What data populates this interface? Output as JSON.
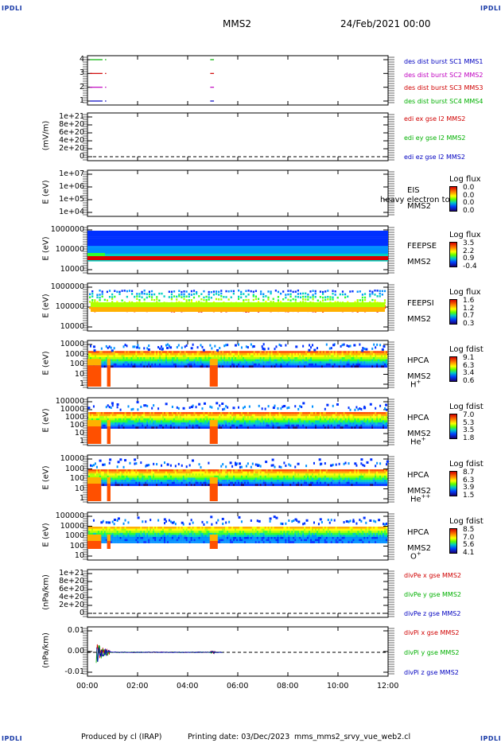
{
  "corners": {
    "tl": "IPDLI",
    "tr": "IPDLI",
    "bl": "IPDLI",
    "br": "IPDLI"
  },
  "header": {
    "spacecraft": "MMS2",
    "date": "24/Feb/2021 00:00"
  },
  "footer": {
    "produced": "Produced by cl (IRAP)",
    "printing": "Printing date: 03/Dec/2023",
    "file": "mms_mms2_srvy_vue_web2.cl"
  },
  "chart_data": [
    {
      "type": "line",
      "panel": "des-dist-burst",
      "ylabel": "",
      "yticks": [
        "4",
        "3",
        "2",
        "1"
      ],
      "ylim": [
        0.5,
        4.5
      ],
      "legend": [
        {
          "name": "des dist burst SC1 MMS1",
          "color": "#0000c0"
        },
        {
          "name": "des dist burst SC2 MMS2",
          "color": "#c000c0"
        },
        {
          "name": "des dist burst SC3 MMS3",
          "color": "#d00000"
        },
        {
          "name": "des dist burst SC4 MMS4",
          "color": "#00b000"
        }
      ],
      "segments": [
        {
          "sc": 4,
          "t": [
            [
              0.1,
              0.6
            ],
            [
              0.7,
              0.75
            ],
            [
              4.9,
              5.05
            ]
          ]
        },
        {
          "sc": 3,
          "t": [
            [
              0.1,
              0.6
            ],
            [
              0.7,
              0.75
            ],
            [
              4.9,
              5.05
            ]
          ]
        },
        {
          "sc": 2,
          "t": [
            [
              0.1,
              0.6
            ],
            [
              0.7,
              0.75
            ],
            [
              4.9,
              5.05
            ]
          ]
        },
        {
          "sc": 1,
          "t": [
            [
              0.1,
              0.6
            ],
            [
              0.7,
              0.75
            ],
            [
              4.9,
              5.05
            ]
          ]
        }
      ]
    },
    {
      "type": "line",
      "panel": "edi-e",
      "ylabel": "(mV/m)",
      "yticks": [
        "1e+21",
        "8e+20",
        "6e+20",
        "4e+20",
        "2e+20",
        "0"
      ],
      "ylim": [
        0,
        1e+21
      ],
      "legend": [
        {
          "name": "edi ex gse l2 MMS2",
          "color": "#d00000"
        },
        {
          "name": "edi ey gse l2 MMS2",
          "color": "#00b000"
        },
        {
          "name": "edi ez gse l2 MMS2",
          "color": "#0000c0"
        }
      ],
      "zero_line": true
    },
    {
      "type": "heatmap",
      "panel": "eis",
      "ylabel": "E (eV)",
      "yticks": [
        "1e+07",
        "1e+06",
        "1e+05",
        "1e+04"
      ],
      "instrument": [
        "EIS",
        "MMS2"
      ],
      "overlay": "heavy electron to",
      "colorbar": {
        "title": "Log flux",
        "values": [
          "0.0",
          "0.0",
          "0.0",
          "0.0"
        ]
      }
    },
    {
      "type": "heatmap",
      "panel": "feeps-e",
      "ylabel": "E (eV)",
      "yticks": [
        "1000000",
        "100000",
        "10000"
      ],
      "instrument": [
        "FEEPSE",
        "MMS2"
      ],
      "colorbar": {
        "title": "Log flux",
        "values": [
          "3.5",
          "2.2",
          "0.9",
          "-0.4"
        ]
      }
    },
    {
      "type": "heatmap",
      "panel": "feeps-i",
      "ylabel": "E (eV)",
      "yticks": [
        "1000000",
        "100000",
        "10000"
      ],
      "instrument": [
        "FEEPSI",
        "MMS2"
      ],
      "colorbar": {
        "title": "Log flux",
        "values": [
          "1.6",
          "1.2",
          "0.7",
          "0.3"
        ]
      }
    },
    {
      "type": "heatmap",
      "panel": "hpca-h",
      "ylabel": "E (eV)",
      "yticks": [
        "10000",
        "1000",
        "100",
        "10",
        "1"
      ],
      "instrument": [
        "HPCA",
        "MMS2"
      ],
      "species": "H",
      "species_sup": "+",
      "colorbar": {
        "title": "Log fdist",
        "values": [
          "9.1",
          "6.3",
          "3.4",
          "0.6"
        ]
      }
    },
    {
      "type": "heatmap",
      "panel": "hpca-he",
      "ylabel": "E (eV)",
      "yticks": [
        "100000",
        "10000",
        "1000",
        "100",
        "10",
        "1"
      ],
      "instrument": [
        "HPCA",
        "MMS2"
      ],
      "species": "He",
      "species_sup": "+",
      "colorbar": {
        "title": "Log fdist",
        "values": [
          "7.0",
          "5.3",
          "3.5",
          "1.8"
        ]
      }
    },
    {
      "type": "heatmap",
      "panel": "hpca-he2",
      "ylabel": "E (eV)",
      "yticks": [
        "10000",
        "1000",
        "100",
        "10",
        "1"
      ],
      "instrument": [
        "HPCA",
        "MMS2"
      ],
      "species": "He",
      "species_sup": "++",
      "colorbar": {
        "title": "Log fdist",
        "values": [
          "8.7",
          "6.3",
          "3.9",
          "1.5"
        ]
      }
    },
    {
      "type": "heatmap",
      "panel": "hpca-o",
      "ylabel": "E (eV)",
      "yticks": [
        "100000",
        "10000",
        "1000",
        "100",
        "10"
      ],
      "instrument": [
        "HPCA",
        "MMS2"
      ],
      "species": "O",
      "species_sup": "+",
      "colorbar": {
        "title": "Log fdist",
        "values": [
          "8.5",
          "7.0",
          "5.6",
          "4.1"
        ]
      }
    },
    {
      "type": "line",
      "panel": "divpe",
      "ylabel": "(nPa/km)",
      "yticks": [
        "1e+21",
        "8e+20",
        "6e+20",
        "4e+20",
        "2e+20",
        "0"
      ],
      "ylim": [
        0,
        1e+21
      ],
      "legend": [
        {
          "name": "divPe x gse MMS2",
          "color": "#d00000"
        },
        {
          "name": "divPe y gse MMS2",
          "color": "#00b000"
        },
        {
          "name": "divPe z gse MMS2",
          "color": "#0000c0"
        }
      ],
      "zero_line": true
    },
    {
      "type": "line",
      "panel": "divpi",
      "ylabel": "(nPa/km)",
      "yticks": [
        "0.01",
        "0.00",
        "-0.01"
      ],
      "ylim": [
        -0.015,
        0.015
      ],
      "legend": [
        {
          "name": "divPi x gse MMS2",
          "color": "#d00000"
        },
        {
          "name": "divPi y gse MMS2",
          "color": "#00b000"
        },
        {
          "name": "divPi z gse MMS2",
          "color": "#0000c0"
        }
      ],
      "zero_line": true
    }
  ],
  "xaxis": {
    "ticks": [
      "00:00",
      "02:00",
      "04:00",
      "06:00",
      "08:00",
      "10:00",
      "12:00"
    ],
    "range_hours": [
      0,
      12
    ]
  }
}
